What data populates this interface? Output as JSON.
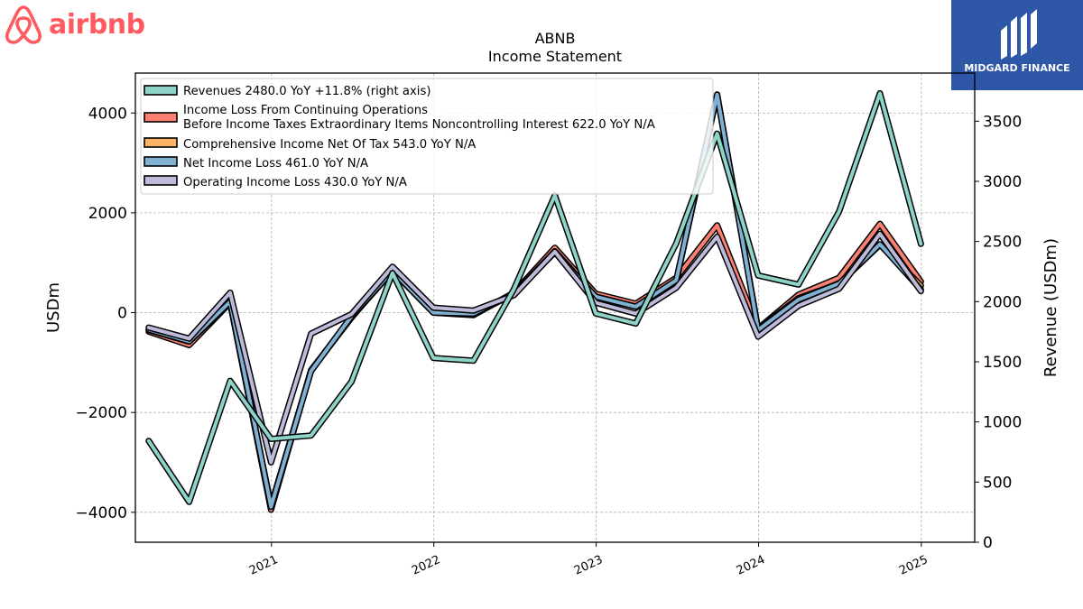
{
  "brand": {
    "left_wordmark": "airbnb",
    "left_color": "#FF5A5F",
    "right_text": "MIDGARD FINANCE",
    "right_bg": "#2F57A8"
  },
  "chart_data": {
    "type": "line",
    "title": "ABNB",
    "subtitle": "Income Statement",
    "ylabel": "USDm",
    "y2label": "Revenue (USDm)",
    "xlabel": "",
    "ylim": [
      -4600,
      4800
    ],
    "y2lim": [
      0,
      3900
    ],
    "yticks": [
      -4000,
      -2000,
      0,
      2000,
      4000
    ],
    "y2ticks": [
      0,
      500,
      1000,
      1500,
      2000,
      2500,
      3000,
      3500
    ],
    "xlim": [
      "2020-03-01",
      "2025-05-01"
    ],
    "xtick_labels": [
      "2021",
      "2022",
      "2023",
      "2024",
      "2025"
    ],
    "grid": true,
    "legend_position": "top-left",
    "dates": [
      "2020-03-31",
      "2020-06-30",
      "2020-09-30",
      "2020-12-31",
      "2021-03-31",
      "2021-06-30",
      "2021-09-30",
      "2021-12-31",
      "2022-03-31",
      "2022-06-30",
      "2022-09-30",
      "2022-12-31",
      "2023-03-31",
      "2023-06-30",
      "2023-09-30",
      "2023-12-31",
      "2024-03-31",
      "2024-06-30",
      "2024-09-30",
      "2024-12-31"
    ],
    "series": [
      {
        "name": "Revenues",
        "legend": "Revenues  2480.0 YoY +11.8% (right axis)",
        "axis": "right",
        "color": "#8DD3C7",
        "values": [
          842,
          335,
          1342,
          859,
          887,
          1335,
          2238,
          1532,
          1509,
          2104,
          2884,
          1902,
          1818,
          2484,
          3397,
          2218,
          2142,
          2748,
          3732,
          2480
        ]
      },
      {
        "name": "Income Loss From Continuing Operations Before Income Taxes Extraordinary Items Noncontrolling Interest",
        "legend_line1": "Income Loss From Continuing Operations",
        "legend_line2": "Before Income Taxes Extraordinary Items Noncontrolling Interest  622.0 YoY N/A",
        "axis": "left",
        "color": "#FB8072",
        "values": [
          -380,
          -650,
          200,
          -3950,
          -1150,
          -100,
          880,
          0,
          -50,
          400,
          1300,
          380,
          180,
          700,
          1750,
          -320,
          360,
          700,
          1780,
          622
        ]
      },
      {
        "name": "Comprehensive Income Net Of Tax",
        "legend": "Comprehensive Income Net Of Tax  543.0 YoY N/A",
        "axis": "left",
        "color": "#FDB462",
        "values": [
          -350,
          -580,
          200,
          -3870,
          -1160,
          -90,
          830,
          0,
          -40,
          380,
          1230,
          320,
          120,
          630,
          4370,
          -330,
          290,
          580,
          1360,
          543
        ]
      },
      {
        "name": "Net Income Loss",
        "legend": "Net Income Loss  461.0 YoY N/A",
        "axis": "left",
        "color": "#80B1D3",
        "values": [
          -340,
          -575,
          220,
          -3890,
          -1170,
          -70,
          840,
          0,
          -20,
          380,
          1210,
          320,
          120,
          650,
          4370,
          -350,
          260,
          580,
          1370,
          461
        ]
      },
      {
        "name": "Operating Income Loss",
        "legend": "Operating Income Loss  430.0 YoY N/A",
        "axis": "left",
        "color": "#BEBADA",
        "values": [
          -300,
          -520,
          400,
          -3000,
          -420,
          -30,
          920,
          100,
          40,
          350,
          1220,
          200,
          -20,
          500,
          1520,
          -480,
          140,
          480,
          1580,
          430
        ]
      }
    ]
  }
}
